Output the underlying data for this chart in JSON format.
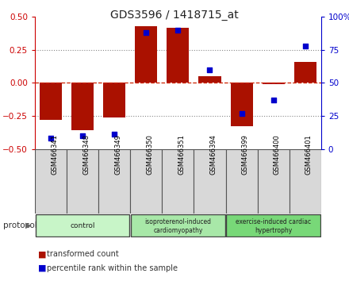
{
  "title": "GDS3596 / 1418715_at",
  "samples": [
    "GSM466341",
    "GSM466348",
    "GSM466349",
    "GSM466350",
    "GSM466351",
    "GSM466394",
    "GSM466399",
    "GSM466400",
    "GSM466401"
  ],
  "bar_values": [
    -0.28,
    -0.36,
    -0.26,
    0.43,
    0.42,
    0.05,
    -0.33,
    -0.01,
    0.16
  ],
  "dot_values": [
    8,
    10,
    11,
    88,
    90,
    60,
    27,
    37,
    78
  ],
  "ylim_left": [
    -0.5,
    0.5
  ],
  "ylim_right": [
    0,
    100
  ],
  "yticks_left": [
    -0.5,
    -0.25,
    0,
    0.25,
    0.5
  ],
  "yticks_right": [
    0,
    25,
    50,
    75,
    100
  ],
  "groups": [
    {
      "label": "control",
      "start": 0,
      "end": 3,
      "color": "#c8f5c8"
    },
    {
      "label": "isoproterenol-induced\ncardiomyopathy",
      "start": 3,
      "end": 6,
      "color": "#a8e8a8"
    },
    {
      "label": "exercise-induced cardiac\nhypertrophy",
      "start": 6,
      "end": 9,
      "color": "#78d878"
    }
  ],
  "bar_color": "#aa1100",
  "dot_color": "#0000cc",
  "zero_line_color": "#cc2200",
  "grid_color": "#888888",
  "left_tick_color": "#cc0000",
  "right_tick_color": "#0000cc",
  "legend_bar_label": "transformed count",
  "legend_dot_label": "percentile rank within the sample",
  "protocol_label": "protocol",
  "bg_color": "#ffffff",
  "plot_bg_color": "#ffffff",
  "sample_box_color": "#d8d8d8"
}
